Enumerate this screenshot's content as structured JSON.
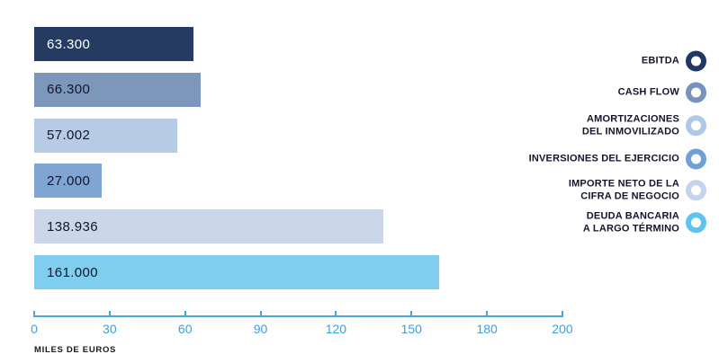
{
  "chart_data": {
    "type": "bar",
    "orientation": "horizontal",
    "title": "",
    "xlabel": "MILES DE EUROS",
    "ylabel": "",
    "xlim": [
      0,
      200
    ],
    "x_ticks": [
      "0",
      "30",
      "60",
      "90",
      "120",
      "150",
      "180",
      "200"
    ],
    "grid": false,
    "legend_position": "right",
    "categories": [
      "EBITDA",
      "CASH FLOW",
      "AMORTIZACIONES DEL INMOVILIZADO",
      "INVERSIONES DEL EJERCICIO",
      "IMPORTE NETO DE LA CIFRA DE NEGOCIO",
      "DEUDA BANCARIA A LARGO TÉRMINO"
    ],
    "values": [
      63.3,
      66.3,
      57.002,
      27.0,
      138.936,
      161.0
    ],
    "value_labels": [
      "63.300",
      "66.300",
      "57.002",
      "27.000",
      "138.936",
      "161.000"
    ],
    "colors": [
      "#253B62",
      "#7C97BA",
      "#B7CBE4",
      "#7FA6D3",
      "#CBD7E9",
      "#7FCDEF"
    ]
  },
  "bars": [
    {
      "label": "63.300",
      "value": 63.3,
      "color": "#253B62",
      "text_color": "#FFFFFF"
    },
    {
      "label": "66.300",
      "value": 66.3,
      "color": "#7C97BA",
      "text_color": "#14142B"
    },
    {
      "label": "57.002",
      "value": 57.002,
      "color": "#B7CBE4",
      "text_color": "#14142B"
    },
    {
      "label": "27.000",
      "value": 27.0,
      "color": "#7FA6D3",
      "text_color": "#14142B"
    },
    {
      "label": "138.936",
      "value": 138.936,
      "color": "#CBD7E9",
      "text_color": "#14142B"
    },
    {
      "label": "161.000",
      "value": 161.0,
      "color": "#7FCDEF",
      "text_color": "#14142B"
    }
  ],
  "axis": {
    "ticks": [
      "0",
      "30",
      "60",
      "90",
      "120",
      "150",
      "180",
      "200"
    ],
    "caption": "MILES DE EUROS",
    "line_color": "#4BA5DC",
    "label_color": "#3F9FD8"
  },
  "legend": {
    "items": [
      {
        "lines": [
          "EBITDA"
        ],
        "color": "#1F3864"
      },
      {
        "lines": [
          "CASH FLOW"
        ],
        "color": "#7593BC"
      },
      {
        "lines": [
          "AMORTIZACIONES",
          "DEL INMOVILIZADO"
        ],
        "color": "#AFC8E8"
      },
      {
        "lines": [
          "INVERSIONES DEL EJERCICIO"
        ],
        "color": "#6FA0D6"
      },
      {
        "lines": [
          "IMPORTE NETO DE LA",
          "CIFRA DE NEGOCIO"
        ],
        "color": "#C5D4ED"
      },
      {
        "lines": [
          "DEUDA BANCARIA",
          "A LARGO TÉRMINO"
        ],
        "color": "#5EC3EF"
      }
    ]
  }
}
